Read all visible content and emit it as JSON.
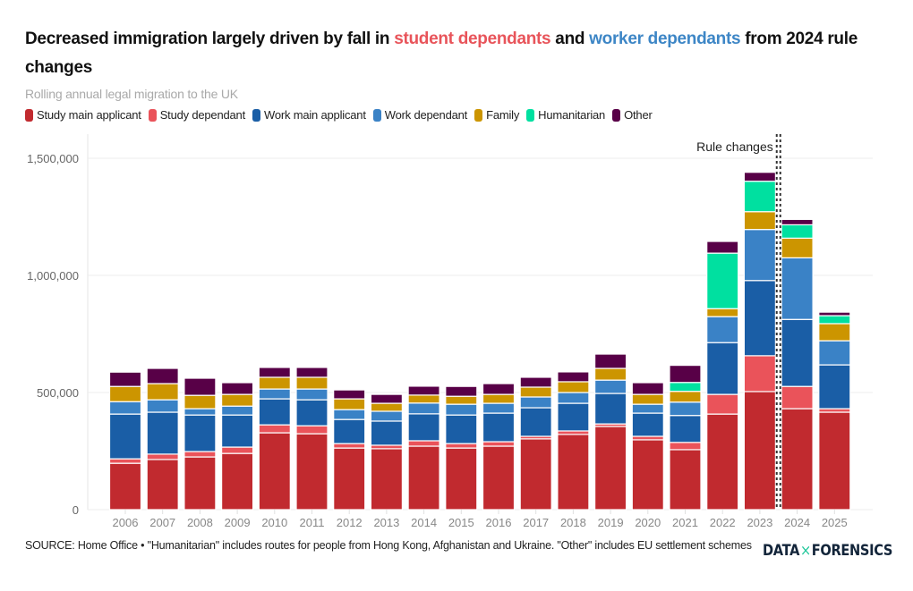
{
  "header": {
    "title_part1": "Decreased immigration largely driven by fall in ",
    "title_highlight1": "student dependants",
    "title_part2": " and ",
    "title_highlight2": "worker dependants",
    "title_part3": " from 2024 rule changes",
    "subtitle": "Rolling annual legal migration to the UK"
  },
  "legend": [
    {
      "label": "Study main applicant",
      "color": "#c12a2f"
    },
    {
      "label": "Study dependant",
      "color": "#ea535a"
    },
    {
      "label": "Work main applicant",
      "color": "#1a5ea6"
    },
    {
      "label": "Work dependant",
      "color": "#3a82c6"
    },
    {
      "label": "Family",
      "color": "#cc9500"
    },
    {
      "label": "Humanitarian",
      "color": "#00e0a0"
    },
    {
      "label": "Other",
      "color": "#580047"
    }
  ],
  "footer": {
    "source": "SOURCE: Home Office • \"Humanitarian\" includes routes for people from Hong Kong, Afghanistan and Ukraine. \"Other\" includes EU settlement schemes",
    "logo_left": "DATA",
    "logo_mid": "×",
    "logo_right": "FORENSICS"
  },
  "chart_data": {
    "type": "bar",
    "stacked": true,
    "title": "Decreased immigration largely driven by fall in student dependants and worker dependants from 2024 rule changes",
    "subtitle": "Rolling annual legal migration to the UK",
    "xlabel": "",
    "ylabel": "",
    "ylim": [
      0,
      1600000
    ],
    "yticks": [
      0,
      500000,
      1000000,
      1500000
    ],
    "ytick_labels": [
      "0",
      "500,000",
      "1,000,000",
      "1,500,000"
    ],
    "grid": true,
    "legend_position": "top-left",
    "categories": [
      "2006",
      "2007",
      "2008",
      "2009",
      "2010",
      "2011",
      "2012",
      "2013",
      "2014",
      "2015",
      "2016",
      "2017",
      "2018",
      "2019",
      "2020",
      "2021",
      "2022",
      "2023",
      "2024",
      "2025"
    ],
    "series": [
      {
        "name": "Study main applicant",
        "color": "#c12a2f",
        "values": [
          198000,
          214000,
          225000,
          240000,
          328000,
          324000,
          263000,
          260000,
          271000,
          263000,
          271000,
          302000,
          321000,
          355000,
          298000,
          256000,
          408000,
          504000,
          431000,
          416000
        ]
      },
      {
        "name": "Study dependant",
        "color": "#ea535a",
        "values": [
          19000,
          23000,
          23000,
          27000,
          34000,
          34000,
          19000,
          15000,
          23000,
          19000,
          19000,
          11000,
          15000,
          11000,
          15000,
          31000,
          84000,
          153000,
          95000,
          15000
        ]
      },
      {
        "name": "Work main applicant",
        "color": "#1a5ea6",
        "values": [
          191000,
          179000,
          156000,
          137000,
          111000,
          111000,
          103000,
          103000,
          115000,
          122000,
          122000,
          122000,
          118000,
          130000,
          99000,
          115000,
          221000,
          321000,
          286000,
          187000
        ]
      },
      {
        "name": "Work dependant",
        "color": "#3a82c6",
        "values": [
          53000,
          53000,
          27000,
          38000,
          42000,
          46000,
          42000,
          42000,
          46000,
          46000,
          42000,
          46000,
          46000,
          57000,
          38000,
          57000,
          111000,
          218000,
          263000,
          103000
        ]
      },
      {
        "name": "Family",
        "color": "#cc9500",
        "values": [
          65000,
          69000,
          57000,
          50000,
          50000,
          50000,
          46000,
          34000,
          34000,
          34000,
          38000,
          42000,
          46000,
          50000,
          42000,
          46000,
          34000,
          76000,
          84000,
          73000
        ]
      },
      {
        "name": "Humanitarian",
        "color": "#00e0a0",
        "values": [
          0,
          0,
          0,
          0,
          0,
          0,
          0,
          0,
          0,
          0,
          0,
          0,
          0,
          0,
          0,
          38000,
          237000,
          130000,
          57000,
          34000
        ]
      },
      {
        "name": "Other",
        "color": "#580047",
        "values": [
          61000,
          65000,
          73000,
          50000,
          42000,
          42000,
          38000,
          38000,
          38000,
          42000,
          46000,
          42000,
          42000,
          61000,
          50000,
          73000,
          50000,
          38000,
          23000,
          15000
        ]
      }
    ],
    "annotations": [
      {
        "text": "Rule changes",
        "type": "vertical-dotted-line",
        "between": [
          "2023",
          "2024"
        ]
      }
    ]
  }
}
